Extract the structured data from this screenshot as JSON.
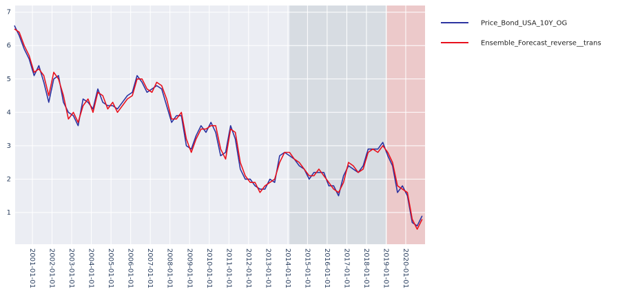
{
  "chart_data": {
    "type": "line",
    "x": [
      "2000-02-01",
      "2000-05-01",
      "2000-08-01",
      "2000-11-01",
      "2001-02-01",
      "2001-05-01",
      "2001-08-01",
      "2001-11-01",
      "2002-02-01",
      "2002-05-01",
      "2002-08-01",
      "2002-11-01",
      "2003-02-01",
      "2003-05-01",
      "2003-08-01",
      "2003-11-01",
      "2004-02-01",
      "2004-05-01",
      "2004-08-01",
      "2004-11-01",
      "2005-02-01",
      "2005-05-01",
      "2005-08-01",
      "2005-11-01",
      "2006-02-01",
      "2006-05-01",
      "2006-08-01",
      "2006-11-01",
      "2007-02-01",
      "2007-05-01",
      "2007-08-01",
      "2007-11-01",
      "2008-02-01",
      "2008-05-01",
      "2008-08-01",
      "2008-11-01",
      "2009-02-01",
      "2009-05-01",
      "2009-08-01",
      "2009-11-01",
      "2010-02-01",
      "2010-05-01",
      "2010-08-01",
      "2010-11-01",
      "2011-02-01",
      "2011-05-01",
      "2011-08-01",
      "2011-11-01",
      "2012-02-01",
      "2012-05-01",
      "2012-08-01",
      "2012-11-01",
      "2013-02-01",
      "2013-05-01",
      "2013-08-01",
      "2013-11-01",
      "2014-02-01",
      "2014-05-01",
      "2014-08-01",
      "2014-11-01",
      "2015-02-01",
      "2015-05-01",
      "2015-08-01",
      "2015-11-01",
      "2016-02-01",
      "2016-05-01",
      "2016-08-01",
      "2016-11-01",
      "2017-02-01",
      "2017-05-01",
      "2017-08-01",
      "2017-11-01",
      "2018-02-01",
      "2018-05-01",
      "2018-08-01",
      "2018-11-01",
      "2019-02-01",
      "2019-05-01",
      "2019-08-01",
      "2019-11-01",
      "2020-02-01",
      "2020-05-01",
      "2020-08-01",
      "2020-11-01"
    ],
    "series": [
      {
        "name": "Price_Bond_USA_10Y_OG",
        "color": "#2b33a0",
        "values": [
          6.6,
          6.3,
          5.9,
          5.6,
          5.1,
          5.4,
          4.9,
          4.3,
          5.0,
          5.1,
          4.3,
          4.0,
          3.9,
          3.6,
          4.4,
          4.3,
          4.1,
          4.7,
          4.3,
          4.2,
          4.2,
          4.1,
          4.3,
          4.5,
          4.6,
          5.1,
          4.9,
          4.6,
          4.7,
          4.8,
          4.7,
          4.2,
          3.7,
          3.9,
          3.9,
          3.0,
          2.9,
          3.3,
          3.6,
          3.4,
          3.7,
          3.4,
          2.7,
          2.8,
          3.6,
          3.2,
          2.3,
          2.0,
          2.0,
          1.8,
          1.7,
          1.7,
          2.0,
          1.9,
          2.7,
          2.8,
          2.7,
          2.6,
          2.4,
          2.3,
          2.0,
          2.2,
          2.2,
          2.2,
          1.8,
          1.8,
          1.5,
          2.1,
          2.4,
          2.3,
          2.2,
          2.4,
          2.9,
          2.9,
          2.9,
          3.1,
          2.7,
          2.4,
          1.6,
          1.8,
          1.5,
          0.7,
          0.6,
          0.9
        ]
      },
      {
        "name": "Ensemble_Forecast_reverse__trans",
        "color": "#e8101c",
        "values": [
          6.5,
          6.4,
          6.0,
          5.7,
          5.2,
          5.3,
          5.1,
          4.5,
          5.2,
          5.0,
          4.5,
          3.8,
          4.0,
          3.7,
          4.2,
          4.4,
          4.0,
          4.6,
          4.5,
          4.1,
          4.3,
          4.0,
          4.2,
          4.4,
          4.5,
          5.0,
          5.0,
          4.7,
          4.6,
          4.9,
          4.8,
          4.4,
          3.8,
          3.8,
          4.0,
          3.2,
          2.8,
          3.2,
          3.5,
          3.5,
          3.6,
          3.6,
          2.9,
          2.6,
          3.5,
          3.4,
          2.5,
          2.1,
          1.9,
          1.9,
          1.6,
          1.8,
          1.9,
          2.0,
          2.5,
          2.8,
          2.8,
          2.6,
          2.5,
          2.3,
          2.1,
          2.1,
          2.3,
          2.1,
          1.9,
          1.7,
          1.6,
          1.9,
          2.5,
          2.4,
          2.2,
          2.3,
          2.8,
          2.9,
          2.8,
          3.0,
          2.8,
          2.5,
          1.8,
          1.7,
          1.6,
          0.8,
          0.5,
          0.8
        ]
      }
    ],
    "shaded_regions": [
      {
        "x0": "2014-02-01",
        "x1": "2018-12-31",
        "color": "#d5d9e0"
      },
      {
        "x0": "2019-01-15",
        "x1": "2020-12-25",
        "color": "#ecc4c5"
      }
    ],
    "xlim": [
      "2000-02-15",
      "2020-12-25"
    ],
    "xticks": [
      "2001-01-01",
      "2002-01-01",
      "2003-01-01",
      "2004-01-01",
      "2005-01-01",
      "2006-01-01",
      "2007-01-01",
      "2008-01-01",
      "2009-01-01",
      "2010-01-01",
      "2011-01-01",
      "2012-01-01",
      "2013-01-01",
      "2014-01-01",
      "2015-01-01",
      "2016-01-01",
      "2017-01-01",
      "2018-01-01",
      "2019-01-01",
      "2020-01-01"
    ],
    "ylim": [
      0.05,
      7.2
    ],
    "yticks": [
      1,
      2,
      3,
      4,
      5,
      6,
      7
    ],
    "grid": true,
    "legend": "right"
  }
}
